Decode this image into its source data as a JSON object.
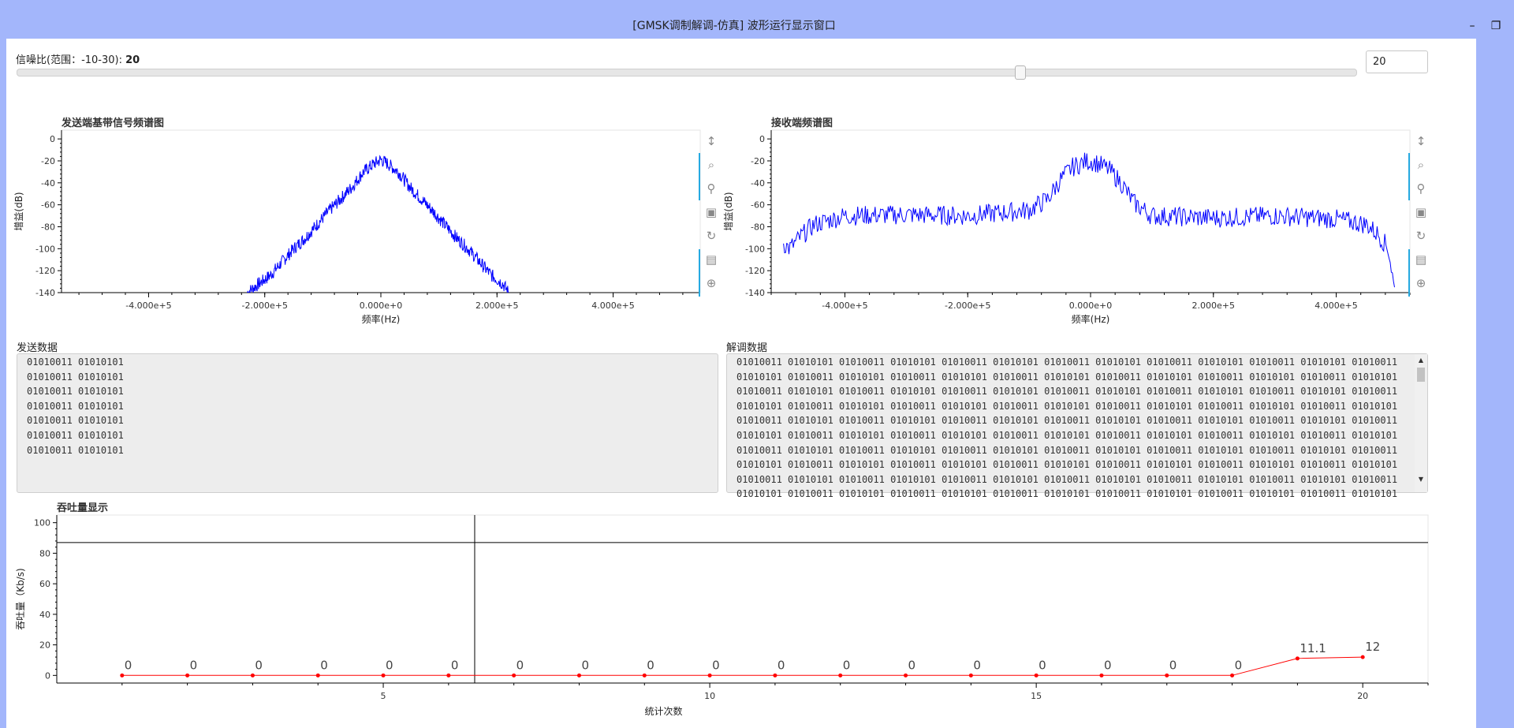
{
  "window": {
    "title": "[GMSK调制解调-仿真] 波形运行显示窗口",
    "minimize_label": "–",
    "maximize_label": "❐"
  },
  "snr": {
    "label": "信噪比(范围：-10-30): ",
    "value": "20",
    "input_value": "20",
    "fraction": 0.7
  },
  "colors": {
    "titlebar": "#a3b6fb",
    "spectrum_line": "#0000ff",
    "throughput_line": "#ff0000",
    "toolbar_active": "#26aae1"
  },
  "tx_spectrum": {
    "title": "发送端基带信号频谱图",
    "ylabel": "增益(dB)",
    "xlabel": "频率(Hz)",
    "yticks": [
      "0",
      "-20",
      "-40",
      "-60",
      "-80",
      "-100",
      "-120",
      "-140"
    ],
    "xticks": [
      "-4.000e+5",
      "-2.000e+5",
      "0.000e+0",
      "2.000e+5",
      "4.000e+5"
    ]
  },
  "rx_spectrum": {
    "title": "接收端频谱图",
    "ylabel": "增益(dB)",
    "xlabel": "频率(Hz)",
    "yticks": [
      "0",
      "-20",
      "-40",
      "-60",
      "-80",
      "-100",
      "-120",
      "-140"
    ],
    "xticks": [
      "-4.000e+5",
      "-2.000e+5",
      "0.000e+0",
      "2.000e+5",
      "4.000e+5"
    ]
  },
  "toolbar_icons": [
    "pan-vertical-icon",
    "box-zoom-icon",
    "wheel-zoom-icon",
    "save-icon",
    "reset-icon",
    "hover-icon",
    "crosshair-icon"
  ],
  "tx_data": {
    "label": "发送数据",
    "text": "01010011 01010101\n01010011 01010101\n01010011 01010101\n01010011 01010101\n01010011 01010101\n01010011 01010101\n01010011 01010101"
  },
  "rx_data": {
    "label": "解调数据",
    "text": "01010011 01010101 01010011 01010101 01010011 01010101 01010011 01010101 01010011 01010101 01010011 01010101 01010011\n01010101 01010011 01010101 01010011 01010101 01010011 01010101 01010011 01010101 01010011 01010101 01010011 01010101\n01010011 01010101 01010011 01010101 01010011 01010101 01010011 01010101 01010011 01010101 01010011 01010101 01010011\n01010101 01010011 01010101 01010011 01010101 01010011 01010101 01010011 01010101 01010011 01010101 01010011 01010101\n01010011 01010101 01010011 01010101 01010011 01010101 01010011 01010101 01010011 01010101 01010011 01010101 01010011\n01010101 01010011 01010101 01010011 01010101 01010011 01010101 01010011 01010101 01010011 01010101 01010011 01010101\n01010011 01010101 01010011 01010101 01010011 01010101 01010011 01010101 01010011 01010101 01010011 01010101 01010011\n01010101 01010011 01010101 01010011 01010101 01010011 01010101 01010011 01010101 01010011 01010101 01010011 01010101\n01010011 01010101 01010011 01010101 01010011 01010101 01010011 01010101 01010011 01010101 01010011 01010101 01010011\n01010101 01010011 01010101 01010011 01010101 01010011 01010101 01010011 01010101 01010011 01010101 01010011 01010101"
  },
  "chart_data": [
    {
      "type": "line",
      "title": "发送端基带信号频谱图",
      "xlabel": "频率(Hz)",
      "ylabel": "增益(dB)",
      "xlim": [
        -550000,
        550000
      ],
      "ylim": [
        -140,
        8
      ],
      "series": [
        {
          "x": [
            -230000,
            -210000,
            -190000,
            -170000,
            -150000,
            -130000,
            -110000,
            -90000,
            -70000,
            -50000,
            -30000,
            -10000,
            0,
            10000,
            30000,
            50000,
            70000,
            90000,
            110000,
            130000,
            150000,
            170000,
            190000,
            210000,
            220000
          ],
          "values": [
            -140,
            -132,
            -124,
            -112,
            -100,
            -90,
            -78,
            -66,
            -55,
            -44,
            -30,
            -22,
            -19,
            -22,
            -30,
            -44,
            -55,
            -66,
            -78,
            -90,
            -100,
            -112,
            -124,
            -132,
            -140
          ]
        }
      ]
    },
    {
      "type": "line",
      "title": "接收端频谱图",
      "xlabel": "频率(Hz)",
      "ylabel": "增益(dB)",
      "xlim": [
        -520000,
        520000
      ],
      "ylim": [
        -140,
        8
      ],
      "series": [
        {
          "x": [
            -500000,
            -490000,
            -470000,
            -450000,
            -400000,
            -300000,
            -200000,
            -100000,
            -70000,
            -50000,
            -30000,
            -10000,
            0,
            10000,
            30000,
            50000,
            70000,
            100000,
            200000,
            300000,
            400000,
            450000,
            470000,
            485000,
            495000
          ],
          "values": [
            -95,
            -100,
            -88,
            -78,
            -70,
            -69,
            -70,
            -65,
            -55,
            -38,
            -26,
            -21,
            -20,
            -22,
            -28,
            -40,
            -58,
            -70,
            -72,
            -70,
            -73,
            -78,
            -88,
            -100,
            -138
          ]
        }
      ]
    },
    {
      "type": "line",
      "title": "吞吐量显示",
      "xlabel": "统计次数",
      "ylabel": "吞吐量（Kb/s)",
      "xlim": [
        0,
        21
      ],
      "ylim": [
        -5,
        105
      ],
      "xticks": [
        "5",
        "10",
        "15",
        "20"
      ],
      "yticks": [
        "0",
        "20",
        "40",
        "60",
        "80",
        "100"
      ],
      "categories": [
        1,
        2,
        3,
        4,
        5,
        6,
        7,
        8,
        9,
        10,
        11,
        12,
        13,
        14,
        15,
        16,
        17,
        18,
        19,
        20
      ],
      "series": [
        {
          "values": [
            0,
            0,
            0,
            0,
            0,
            0,
            0,
            0,
            0,
            0,
            0,
            0,
            0,
            0,
            0,
            0,
            0,
            0,
            11.1,
            12
          ],
          "labels": [
            "0",
            "0",
            "0",
            "0",
            "0",
            "0",
            "0",
            "0",
            "0",
            "0",
            "0",
            "0",
            "0",
            "0",
            "0",
            "0",
            "0",
            "0",
            "11.1",
            "12"
          ]
        }
      ],
      "crosshair": {
        "x": 6.4,
        "y": 87
      }
    }
  ]
}
